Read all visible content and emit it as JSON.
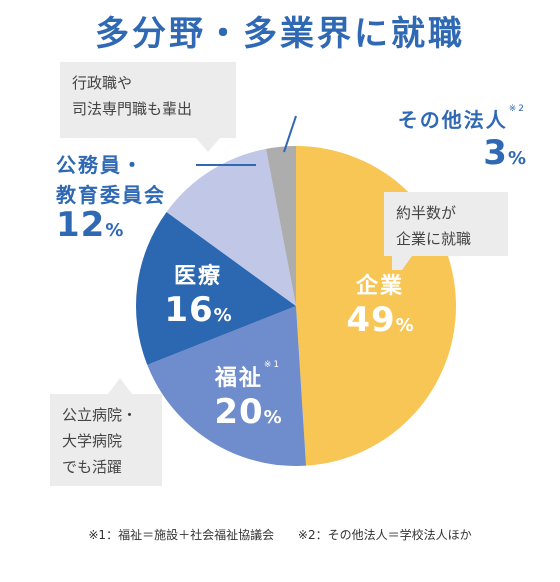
{
  "title": "多分野・多業界に就職",
  "chart_data": {
    "type": "pie",
    "title": "多分野・多業界に就職",
    "slices": [
      {
        "label": "企業",
        "value": 49,
        "color": "#f8c655"
      },
      {
        "label": "福祉",
        "value": 20,
        "color": "#6f8ccc"
      },
      {
        "label": "医療",
        "value": 16,
        "color": "#2c68b2"
      },
      {
        "label": "公務員・教育委員会",
        "value": 12,
        "color": "#c1c7e7"
      },
      {
        "label": "その他法人",
        "value": 3,
        "color": "#adadad"
      }
    ],
    "unit": "%"
  },
  "labels": {
    "corp": {
      "name": "企業",
      "pct": "49",
      "sign": "%"
    },
    "welf": {
      "name": "福祉",
      "mark": "※1",
      "pct": "20",
      "sign": "%"
    },
    "med": {
      "name": "医療",
      "pct": "16",
      "sign": "%"
    },
    "gov": {
      "line1": "公務員・",
      "line2": "教育委員会",
      "pct": "12",
      "sign": "%"
    },
    "oth": {
      "name": "その他法人",
      "mark": "※2",
      "pct": "3",
      "sign": "%"
    }
  },
  "callouts": {
    "gov": [
      "行政職や",
      "司法専門職も輩出"
    ],
    "corp": [
      "約半数が",
      "企業に就職"
    ],
    "welf": [
      "公立病院・",
      "大学病院",
      "でも活躍"
    ]
  },
  "footnotes": [
    "※1：福祉＝施設＋社会福祉協議会",
    "※2：その他法人＝学校法人ほか"
  ]
}
